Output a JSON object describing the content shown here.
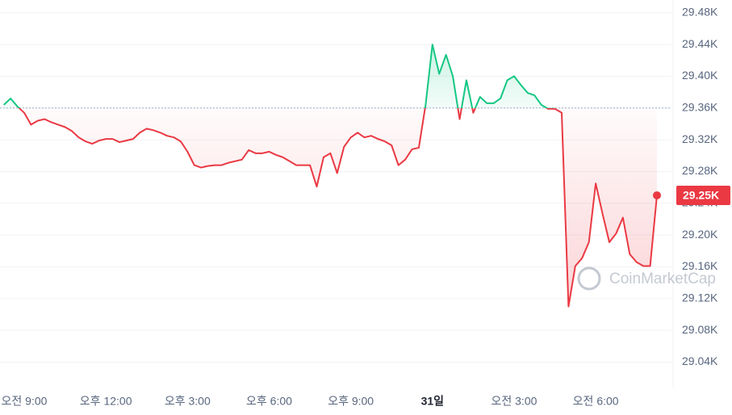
{
  "chart_data": {
    "type": "line",
    "categories": [
      null,
      null,
      null,
      "오전 9:00",
      null,
      null,
      null,
      null,
      null,
      null,
      null,
      null,
      null,
      null,
      null,
      "오후 12:00",
      null,
      null,
      null,
      null,
      null,
      null,
      null,
      null,
      null,
      null,
      null,
      "오후 3:00",
      null,
      null,
      null,
      null,
      null,
      null,
      null,
      null,
      null,
      null,
      null,
      "오후 6:00",
      null,
      null,
      null,
      null,
      null,
      null,
      null,
      null,
      null,
      null,
      null,
      "오후 9:00",
      null,
      null,
      null,
      null,
      null,
      null,
      null,
      null,
      null,
      null,
      null,
      "31일",
      null,
      null,
      null,
      null,
      null,
      null,
      null,
      null,
      null,
      null,
      null,
      "오전 3:00",
      null,
      null,
      null,
      null,
      null,
      null,
      null,
      null,
      null,
      null,
      null,
      "오전 6:00",
      null,
      null,
      null,
      null,
      null,
      null,
      null,
      null,
      null
    ],
    "series": [
      {
        "values": [
          29364,
          29372,
          29362,
          29354,
          29339,
          29344,
          29346,
          29342,
          29339,
          29336,
          29331,
          29323,
          29318,
          29315,
          29319,
          29321,
          29321,
          29317,
          29319,
          29321,
          29329,
          29334,
          29332,
          29329,
          29325,
          29323,
          29318,
          29305,
          29288,
          29285,
          29287,
          29288,
          29288,
          29291,
          29293,
          29295,
          29307,
          29303,
          29303,
          29305,
          29301,
          29298,
          29293,
          29288,
          29288,
          29288,
          29261,
          29298,
          29303,
          29278,
          29311,
          29323,
          29329,
          29323,
          29325,
          29321,
          29318,
          29313,
          29288,
          29295,
          29308,
          29310,
          29364,
          29440,
          29403,
          29427,
          29400,
          29346,
          29395,
          29354,
          29374,
          29366,
          29366,
          29372,
          29395,
          29400,
          29389,
          29379,
          29376,
          29364,
          29359,
          29359,
          29354,
          29110,
          29161,
          29171,
          29191,
          29265,
          29227,
          29191,
          29202,
          29222,
          29176,
          29166,
          29161,
          29161,
          29250
        ],
        "value_labels": [
          null,
          null,
          null,
          null,
          null,
          null,
          null,
          null,
          null,
          null,
          null,
          null,
          null,
          null,
          null,
          null,
          null,
          null,
          null,
          null,
          null,
          null,
          null,
          null,
          null,
          null,
          null,
          null,
          null,
          null,
          null,
          null,
          null,
          null,
          null,
          null,
          null,
          null,
          null,
          null,
          null,
          null,
          null,
          null,
          null,
          null,
          null,
          null,
          null,
          null,
          null,
          null,
          null,
          null,
          null,
          null,
          null,
          null,
          null,
          null,
          null,
          null,
          null,
          null,
          null,
          null,
          null,
          null,
          null,
          null,
          null,
          null,
          null,
          null,
          null,
          null,
          null,
          null,
          null,
          null,
          null,
          null,
          null,
          null,
          null,
          null,
          null,
          null,
          null,
          null,
          null,
          null,
          null,
          null,
          null,
          null,
          "29.25K"
        ]
      }
    ],
    "reference_line": 29360,
    "up_color": "#16c784",
    "down_color": "#ea3943",
    "ylim": [
      29008,
      29496
    ],
    "yticks": [
      {
        "value": 29040,
        "label": "29.04K"
      },
      {
        "value": 29080,
        "label": "29.08K"
      },
      {
        "value": 29120,
        "label": "29.12K"
      },
      {
        "value": 29160,
        "label": "29.16K"
      },
      {
        "value": 29200,
        "label": "29.20K"
      },
      {
        "value": 29240,
        "label": "29.24K"
      },
      {
        "value": 29280,
        "label": "29.28K"
      },
      {
        "value": 29320,
        "label": "29.32K"
      },
      {
        "value": 29360,
        "label": "29.36K"
      },
      {
        "value": 29400,
        "label": "29.40K"
      },
      {
        "value": 29440,
        "label": "29.44K"
      },
      {
        "value": 29480,
        "label": "29.48K"
      }
    ],
    "grid": true,
    "watermark": "CoinMarketCap"
  }
}
